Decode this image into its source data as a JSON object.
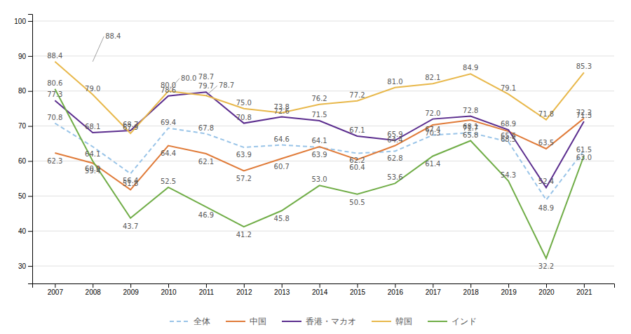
{
  "chart_data": {
    "type": "line",
    "x": [
      2007,
      2008,
      2009,
      2010,
      2011,
      2012,
      2013,
      2014,
      2015,
      2016,
      2017,
      2018,
      2019,
      2020,
      2021
    ],
    "series": [
      {
        "name": "全体",
        "color": "#99C4E8",
        "line_style": "dashed",
        "values": [
          70.8,
          64.1,
          56.4,
          69.4,
          67.8,
          63.9,
          64.6,
          63.9,
          62.2,
          62.8,
          67.4,
          68.1,
          65.5,
          48.9,
          63.0
        ],
        "value_labels": [
          "70.8",
          "64.1",
          "56.4",
          "69.4",
          "67.8",
          "63.9",
          "64.6",
          "63.9",
          "62.2",
          "62.8",
          "67.4",
          "68.1",
          "65.5",
          "48.9",
          "63.0"
        ]
      },
      {
        "name": "中国",
        "color": "#E07B39",
        "line_style": "solid",
        "values": [
          62.3,
          59.4,
          51.8,
          64.4,
          62.1,
          57.2,
          60.7,
          64.1,
          60.4,
          64.4,
          70.3,
          71.7,
          68.5,
          63.5,
          72.2
        ],
        "value_labels": [
          "62.3",
          "59.4",
          "51.8",
          "64.4",
          "62.1",
          "57.2",
          "60.7",
          "64.1",
          "60.4",
          "64.4",
          "70.3",
          "71.7",
          "68.5",
          "63.5",
          "72.2"
        ]
      },
      {
        "name": "香港・マカオ",
        "color": "#5B2D8E",
        "line_style": "solid",
        "values": [
          77.3,
          68.1,
          68.7,
          78.6,
          79.7,
          70.8,
          72.6,
          71.5,
          67.1,
          65.9,
          72.0,
          72.8,
          68.9,
          52.4,
          71.3
        ],
        "value_labels": [
          "77.3",
          "68.1",
          "68.7",
          "78.6",
          "79.7",
          "70.8",
          "72.6",
          "71.5",
          "67.1",
          "65.9",
          "72.0",
          "72.8",
          "68.9",
          "52.4",
          "71.3"
        ]
      },
      {
        "name": "韓国",
        "color": "#E8B84B",
        "line_style": "solid",
        "values": [
          88.4,
          79.0,
          67.9,
          80.0,
          78.7,
          75.0,
          73.8,
          76.2,
          77.2,
          81.0,
          82.1,
          84.9,
          79.1,
          71.8,
          85.3
        ],
        "value_labels": [
          "88.4",
          "79.0",
          "67.9",
          "80.0",
          "78.7",
          "75.0",
          "73.8",
          "76.2",
          "77.2",
          "81.0",
          "82.1",
          "84.9",
          "79.1",
          "71.8",
          "85.3"
        ]
      },
      {
        "name": "インド",
        "color": "#70AD47",
        "line_style": "solid",
        "values": [
          80.6,
          60.0,
          43.7,
          52.5,
          46.9,
          41.2,
          45.8,
          53.0,
          50.5,
          53.6,
          61.4,
          65.8,
          54.3,
          32.2,
          61.5
        ],
        "value_labels": [
          "80.6",
          "60.0",
          "43.7",
          "52.5",
          "46.9",
          "41.2",
          "45.8",
          "53.0",
          "50.5",
          "53.6",
          "61.4",
          "65.8",
          "54.3",
          "32.2",
          "61.5"
        ]
      }
    ],
    "annotations": [
      {
        "text": "88.4",
        "x": 2008,
        "y": 88.4
      },
      {
        "text": "80.0",
        "x": 2010,
        "y": 80.0
      },
      {
        "text": "78.7",
        "x": 2011,
        "y": 78.7
      }
    ],
    "xlim": [
      2006.4,
      2021.8
    ],
    "xticks": [
      2007,
      2008,
      2009,
      2010,
      2011,
      2012,
      2013,
      2014,
      2015,
      2016,
      2017,
      2018,
      2019,
      2020,
      2021
    ],
    "ylim": [
      25,
      102
    ],
    "yticks": [
      30,
      40,
      50,
      60,
      70,
      80,
      90,
      100
    ],
    "grid": true,
    "data_labels": true,
    "legend": "bottom"
  }
}
